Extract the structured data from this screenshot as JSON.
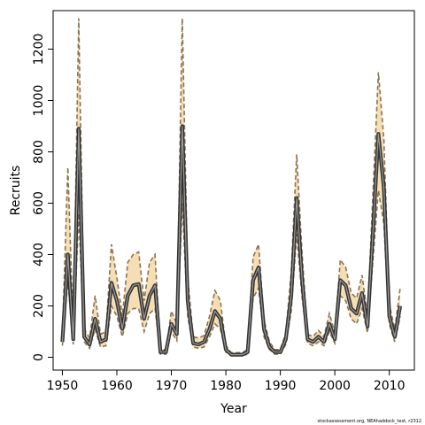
{
  "chart_data": {
    "type": "line",
    "title": "",
    "xlabel": "Year",
    "ylabel": "Recruits",
    "xlim": [
      1948.3,
      2014.6
    ],
    "ylim": [
      -50,
      1350
    ],
    "x_ticks": [
      1950,
      1960,
      1970,
      1980,
      1990,
      2000,
      2010
    ],
    "y_ticks": [
      0,
      200,
      400,
      600,
      800,
      1000,
      1200
    ],
    "grid": false,
    "legend": "none",
    "colors": {
      "band": "#F5DEB3",
      "estimate": "#555555",
      "bounds": "#8B7355"
    },
    "footnote": "stockassessment.org, NEAhaddock_test, r2312",
    "series": [
      {
        "style": "estimate",
        "x": [
          1950,
          1951,
          1952,
          1953,
          1954,
          1955,
          1956,
          1957,
          1958,
          1959,
          1960,
          1961,
          1962,
          1963,
          1964,
          1965,
          1966,
          1967,
          1968,
          1969,
          1970,
          1971,
          1972,
          1973,
          1974,
          1975,
          1976,
          1977,
          1978,
          1979,
          1980,
          1981,
          1982,
          1983,
          1984,
          1985,
          1986,
          1987,
          1988,
          1989,
          1990,
          1991,
          1992,
          1993,
          1994,
          1995,
          1996,
          1997,
          1998,
          1999,
          2000,
          2001,
          2002,
          2003,
          2004,
          2005,
          2006,
          2007,
          2008,
          2009,
          2010,
          2011,
          2012
        ],
        "values": [
          60,
          400,
          70,
          890,
          80,
          50,
          150,
          60,
          70,
          290,
          220,
          110,
          240,
          280,
          285,
          150,
          240,
          280,
          20,
          20,
          130,
          90,
          900,
          220,
          55,
          50,
          60,
          110,
          180,
          150,
          30,
          10,
          10,
          10,
          20,
          300,
          350,
          110,
          40,
          20,
          20,
          70,
          240,
          620,
          300,
          70,
          60,
          80,
          60,
          130,
          70,
          300,
          280,
          190,
          170,
          250,
          120,
          490,
          870,
          660,
          160,
          80,
          200
        ]
      },
      {
        "style": "lower",
        "x": [
          1950,
          1951,
          1952,
          1953,
          1954,
          1955,
          1956,
          1957,
          1958,
          1959,
          1960,
          1961,
          1962,
          1963,
          1964,
          1965,
          1966,
          1967,
          1968,
          1969,
          1970,
          1971,
          1972,
          1973,
          1974,
          1975,
          1976,
          1977,
          1978,
          1979,
          1980,
          1981,
          1982,
          1983,
          1984,
          1985,
          1986,
          1987,
          1988,
          1989,
          1990,
          1991,
          1992,
          1993,
          1994,
          1995,
          1996,
          1997,
          1998,
          1999,
          2000,
          2001,
          2002,
          2003,
          2004,
          2005,
          2006,
          2007,
          2008,
          2009,
          2010,
          2011,
          2012
        ],
        "values": [
          45,
          300,
          50,
          560,
          60,
          35,
          110,
          40,
          45,
          200,
          160,
          80,
          170,
          190,
          190,
          100,
          170,
          190,
          12,
          12,
          100,
          65,
          600,
          160,
          40,
          35,
          40,
          80,
          130,
          110,
          20,
          6,
          6,
          6,
          12,
          230,
          270,
          80,
          30,
          12,
          12,
          50,
          180,
          480,
          230,
          55,
          45,
          60,
          45,
          100,
          55,
          240,
          220,
          150,
          130,
          190,
          95,
          380,
          650,
          520,
          130,
          60,
          160
        ]
      },
      {
        "style": "upper",
        "x": [
          1950,
          1951,
          1952,
          1953,
          1954,
          1955,
          1956,
          1957,
          1958,
          1959,
          1960,
          1961,
          1962,
          1963,
          1964,
          1965,
          1966,
          1967,
          1968,
          1969,
          1970,
          1971,
          1972,
          1973,
          1974,
          1975,
          1976,
          1977,
          1978,
          1979,
          1980,
          1981,
          1982,
          1983,
          1984,
          1985,
          1986,
          1987,
          1988,
          1989,
          1990,
          1991,
          1992,
          1993,
          1994,
          1995,
          1996,
          1997,
          1998,
          1999,
          2000,
          2001,
          2002,
          2003,
          2004,
          2005,
          2006,
          2007,
          2008,
          2009,
          2010,
          2011,
          2012
        ],
        "values": [
          85,
          740,
          100,
          1320,
          110,
          75,
          240,
          90,
          100,
          440,
          310,
          160,
          370,
          400,
          410,
          220,
          370,
          400,
          30,
          30,
          180,
          130,
          1320,
          310,
          80,
          75,
          85,
          160,
          260,
          220,
          45,
          18,
          18,
          18,
          30,
          390,
          440,
          145,
          60,
          30,
          30,
          95,
          330,
          790,
          400,
          90,
          80,
          105,
          80,
          170,
          95,
          380,
          350,
          250,
          230,
          320,
          160,
          640,
          1110,
          850,
          205,
          110,
          270
        ]
      }
    ]
  }
}
